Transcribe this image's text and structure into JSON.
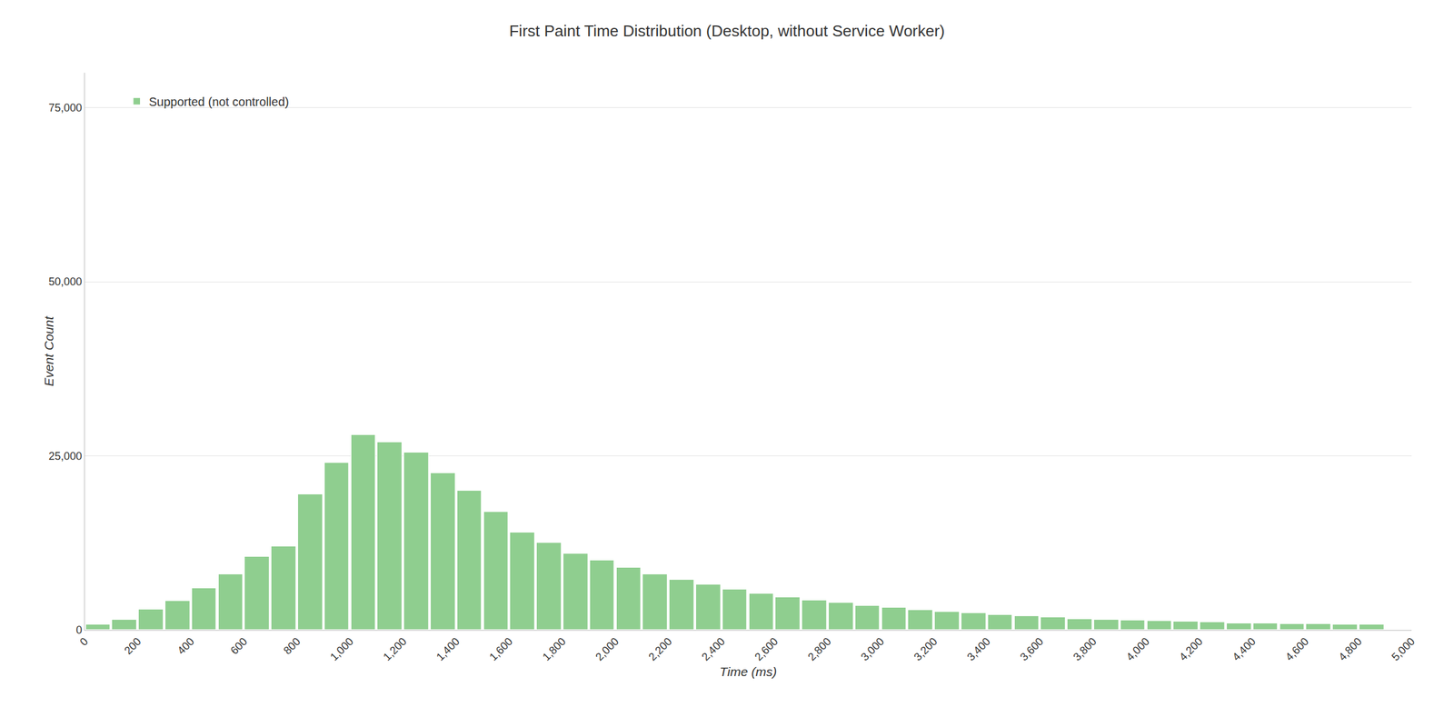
{
  "chart_data": {
    "type": "histogram",
    "title": "First Paint Time Distribution (Desktop, without Service Worker)",
    "x_label": "Time (ms)",
    "y_label": "Event Count",
    "bins": [
      0,
      100,
      200,
      300,
      400,
      500,
      600,
      700,
      800,
      900,
      1000,
      1100,
      1200,
      1300,
      1400,
      1500,
      1600,
      1700,
      1800,
      1900,
      2000,
      2100,
      2200,
      2300,
      2400,
      2500,
      2600,
      2700,
      2800,
      2900,
      3000,
      3100,
      3200,
      3300,
      3400,
      3500,
      3600,
      3700,
      3800,
      3900,
      4000,
      4100,
      4200,
      4300,
      4400,
      4500,
      4600,
      4700,
      4800,
      4900
    ],
    "series": [
      {
        "name": "Supported (not controlled)",
        "color": "#8fce8f",
        "values": [
          800,
          1500,
          3000,
          4200,
          6000,
          8000,
          10500,
          12000,
          19500,
          24000,
          28000,
          27000,
          25500,
          22500,
          20000,
          17000,
          14000,
          12500,
          11000,
          10000,
          9000,
          8000,
          7200,
          6500,
          5800,
          5200,
          4700,
          4300,
          3900,
          3500,
          3200,
          2900,
          2600,
          2400,
          2200,
          2000,
          1800,
          1600,
          1500,
          1400,
          1300,
          1200,
          1100,
          1000,
          950,
          900,
          850,
          800,
          750
        ]
      }
    ],
    "xlim": [
      0,
      5000
    ],
    "xticks": [
      0,
      200,
      400,
      600,
      800,
      {
        "value": 1000,
        "label": "1,000"
      },
      {
        "value": 1200,
        "label": "1,200"
      },
      {
        "value": 1400,
        "label": "1,400"
      },
      {
        "value": 1600,
        "label": "1,600"
      },
      {
        "value": 1800,
        "label": "1,800"
      },
      {
        "value": 2000,
        "label": "2,000"
      },
      {
        "value": 2200,
        "label": "2,200"
      },
      {
        "value": 2400,
        "label": "2,400"
      },
      {
        "value": 2600,
        "label": "2,600"
      },
      {
        "value": 2800,
        "label": "2,800"
      },
      {
        "value": 3000,
        "label": "3,000"
      },
      {
        "value": 3200,
        "label": "3,200"
      },
      {
        "value": 3400,
        "label": "3,400"
      },
      {
        "value": 3600,
        "label": "3,600"
      },
      {
        "value": 3800,
        "label": "3,800"
      },
      {
        "value": 4000,
        "label": "4,000"
      },
      {
        "value": 4200,
        "label": "4,200"
      },
      {
        "value": 4400,
        "label": "4,400"
      },
      {
        "value": 4600,
        "label": "4,600"
      },
      {
        "value": 4800,
        "label": "4,800"
      },
      {
        "value": 5000,
        "label": "5,000"
      }
    ],
    "ylim": [
      0,
      80000
    ],
    "yticks": [
      0,
      {
        "value": 25000,
        "label": "25,000"
      },
      {
        "value": 50000,
        "label": "50,000"
      },
      {
        "value": 75000,
        "label": "75,000"
      }
    ],
    "grid": true,
    "legend": "upper left"
  }
}
